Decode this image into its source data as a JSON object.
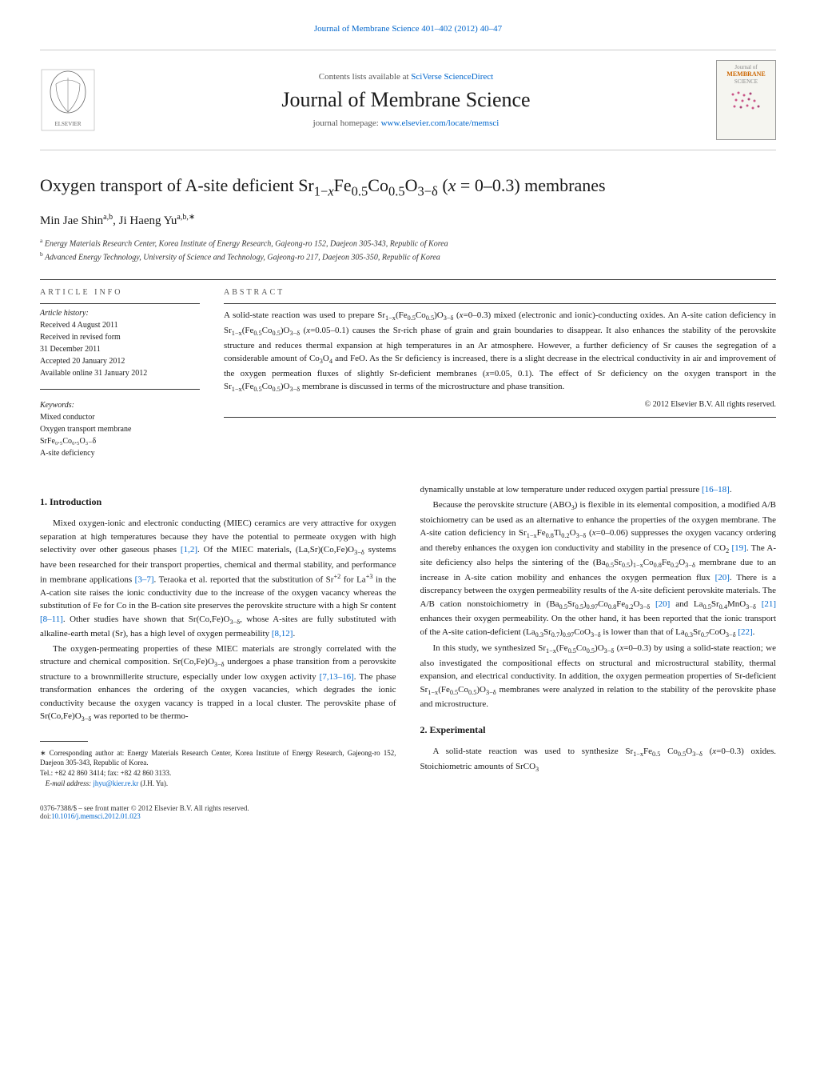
{
  "header": {
    "journal_ref": "Journal of Membrane Science 401–402 (2012) 40–47",
    "contents_prefix": "Contents lists available at ",
    "contents_link": "SciVerse ScienceDirect",
    "journal_title": "Journal of Membrane Science",
    "homepage_prefix": "journal homepage: ",
    "homepage_url": "www.elsevier.com/locate/memsci",
    "cover_text_top": "Journal of",
    "cover_text_main": "MEMBRANE",
    "cover_text_bottom": "SCIENCE"
  },
  "article": {
    "title_html": "Oxygen transport of A-site deficient Sr<sub>1−<i>x</i></sub>Fe<sub>0.5</sub>Co<sub>0.5</sub>O<sub>3−δ</sub> (<i>x</i> = 0–0.3) membranes",
    "authors_html": "Min Jae Shin<sup>a,b</sup>, Ji Haeng Yu<sup>a,b,∗</sup>",
    "affiliations": [
      {
        "sup": "a",
        "text": "Energy Materials Research Center, Korea Institute of Energy Research, Gajeong-ro 152, Daejeon 305-343, Republic of Korea"
      },
      {
        "sup": "b",
        "text": "Advanced Energy Technology, University of Science and Technology, Gajeong-ro 217, Daejeon 305-350, Republic of Korea"
      }
    ]
  },
  "info": {
    "section_label": "ARTICLE INFO",
    "history_label": "Article history:",
    "history": [
      "Received 4 August 2011",
      "Received in revised form",
      "31 December 2011",
      "Accepted 20 January 2012",
      "Available online 31 January 2012"
    ],
    "keywords_label": "Keywords:",
    "keywords": [
      "Mixed conductor",
      "Oxygen transport membrane",
      "SrFe₀.₅Co₀.₅O₃₋δ",
      "A-site deficiency"
    ]
  },
  "abstract": {
    "section_label": "ABSTRACT",
    "text_html": "A solid-state reaction was used to prepare Sr<sub>1−x</sub>(Fe<sub>0.5</sub>Co<sub>0.5</sub>)O<sub>3−δ</sub> (<i>x</i>=0–0.3) mixed (electronic and ionic)-conducting oxides. An A-site cation deficiency in Sr<sub>1−x</sub>(Fe<sub>0.5</sub>Co<sub>0.5</sub>)O<sub>3−δ</sub> (<i>x</i>=0.05–0.1) causes the Sr-rich phase of grain and grain boundaries to disappear. It also enhances the stability of the perovskite structure and reduces thermal expansion at high temperatures in an Ar atmosphere. However, a further deficiency of Sr causes the segregation of a considerable amount of Co<sub>3</sub>O<sub>4</sub> and FeO. As the Sr deficiency is increased, there is a slight decrease in the electrical conductivity in air and improvement of the oxygen permeation fluxes of slightly Sr-deficient membranes (<i>x</i>=0.05, 0.1). The effect of Sr deficiency on the oxygen transport in the Sr<sub>1−x</sub>(Fe<sub>0.5</sub>Co<sub>0.5</sub>)O<sub>3−δ</sub> membrane is discussed in terms of the microstructure and phase transition.",
    "copyright": "© 2012 Elsevier B.V. All rights reserved."
  },
  "body": {
    "left_column": {
      "section_title": "1. Introduction",
      "paragraphs_html": [
        "Mixed oxygen-ionic and electronic conducting (MIEC) ceramics are very attractive for oxygen separation at high temperatures because they have the potential to permeate oxygen with high selectivity over other gaseous phases <a class='ref-link'>[1,2]</a>. Of the MIEC materials, (La,Sr)(Co,Fe)O<sub>3−δ</sub> systems have been researched for their transport properties, chemical and thermal stability, and performance in membrane applications <a class='ref-link'>[3–7]</a>. Teraoka et al. reported that the substitution of Sr<sup>+2</sup> for La<sup>+3</sup> in the A-cation site raises the ionic conductivity due to the increase of the oxygen vacancy whereas the substitution of Fe for Co in the B-cation site preserves the perovskite structure with a high Sr content <a class='ref-link'>[8–11]</a>. Other studies have shown that Sr(Co,Fe)O<sub>3−δ</sub>, whose A-sites are fully substituted with alkaline-earth metal (Sr), has a high level of oxygen permeability <a class='ref-link'>[8,12]</a>.",
        "The oxygen-permeating properties of these MIEC materials are strongly correlated with the structure and chemical composition. Sr(Co,Fe)O<sub>3−δ</sub> undergoes a phase transition from a perovskite structure to a brownmillerite structure, especially under low oxygen activity <a class='ref-link'>[7,13–16]</a>. The phase transformation enhances the ordering of the oxygen vacancies, which degrades the ionic conductivity because the oxygen vacancy is trapped in a local cluster. The perovskite phase of Sr(Co,Fe)O<sub>3−δ</sub> was reported to be thermo-"
      ],
      "footnote_html": "∗ Corresponding author at: Energy Materials Research Center, Korea Institute of Energy Research, Gajeong-ro 152, Daejeon 305-343, Republic of Korea.<br>Tel.: +82 42 860 3414; fax: +82 42 860 3133.<br>&nbsp;&nbsp;&nbsp;<i>E-mail address:</i> <a class='ref-link'>jhyu@kier.re.kr</a> (J.H. Yu)."
    },
    "right_column": {
      "paragraphs_html": [
        "dynamically unstable at low temperature under reduced oxygen partial pressure <a class='ref-link'>[16–18]</a>.",
        "Because the perovskite structure (ABO<sub>3</sub>) is flexible in its elemental composition, a modified A/B stoichiometry can be used as an alternative to enhance the properties of the oxygen membrane. The A-site cation deficiency in Sr<sub>1−x</sub>Fe<sub>0.8</sub>Ti<sub>0.2</sub>O<sub>3−δ</sub> (<i>x</i>=0–0.06) suppresses the oxygen vacancy ordering and thereby enhances the oxygen ion conductivity and stability in the presence of CO<sub>2</sub> <a class='ref-link'>[19]</a>. The A-site deficiency also helps the sintering of the (Ba<sub>0.5</sub>Sr<sub>0.5</sub>)<sub>1−x</sub>Co<sub>0.8</sub>Fe<sub>0.2</sub>O<sub>3−δ</sub> membrane due to an increase in A-site cation mobility and enhances the oxygen permeation flux <a class='ref-link'>[20]</a>. There is a discrepancy between the oxygen permeability results of the A-site deficient perovskite materials. The A/B cation nonstoichiometry in (Ba<sub>0.5</sub>Sr<sub>0.5</sub>)<sub>0.97</sub>Co<sub>0.8</sub>Fe<sub>0.2</sub>O<sub>3−δ</sub> <a class='ref-link'>[20]</a> and La<sub>0.5</sub>Sr<sub>0.4</sub>MnO<sub>3−δ</sub> <a class='ref-link'>[21]</a> enhances their oxygen permeability. On the other hand, it has been reported that the ionic transport of the A-site cation-deficient (La<sub>0.3</sub>Sr<sub>0.7</sub>)<sub>0.97</sub>CoO<sub>3−δ</sub> is lower than that of La<sub>0.3</sub>Sr<sub>0.7</sub>CoO<sub>3−δ</sub> <a class='ref-link'>[22]</a>.",
        "In this study, we synthesized Sr<sub>1−x</sub>(Fe<sub>0.5</sub>Co<sub>0.5</sub>)O<sub>3−δ</sub> (<i>x</i>=0–0.3) by using a solid-state reaction; we also investigated the compositional effects on structural and microstructural stability, thermal expansion, and electrical conductivity. In addition, the oxygen permeation properties of Sr-deficient Sr<sub>1−x</sub>(Fe<sub>0.5</sub>Co<sub>0.5</sub>)O<sub>3−δ</sub> membranes were analyzed in relation to the stability of the perovskite phase and microstructure."
      ],
      "section_title": "2. Experimental",
      "experimental_html": "A solid-state reaction was used to synthesize Sr<sub>1−x</sub>Fe<sub>0.5</sub> Co<sub>0.5</sub>O<sub>3−δ</sub> (<i>x</i>=0–0.3) oxides. Stoichiometric amounts of SrCO<sub>3</sub>"
    }
  },
  "footer": {
    "left": "0376-7388/$ – see front matter © 2012 Elsevier B.V. All rights reserved.",
    "doi_prefix": "doi:",
    "doi": "10.1016/j.memsci.2012.01.023"
  },
  "colors": {
    "link": "#0066cc",
    "text": "#1a1a1a",
    "border": "#cccccc",
    "orange": "#cc6600"
  }
}
